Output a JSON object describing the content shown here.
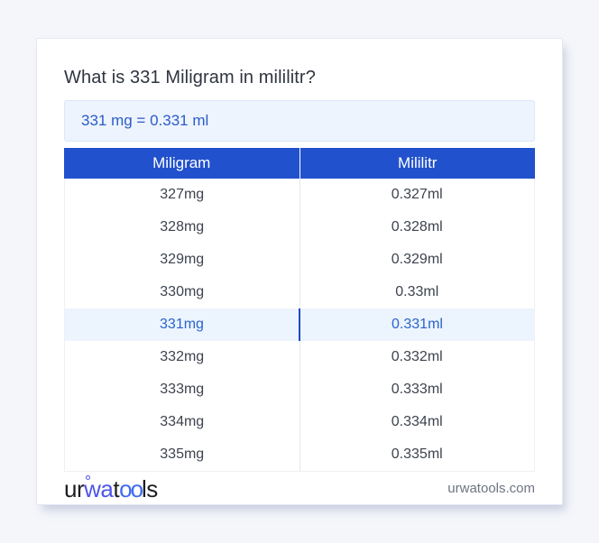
{
  "card": {
    "title": "What is 331 Miligram in mililitr?",
    "result": "331 mg = 0.331 ml"
  },
  "table": {
    "headers": [
      "Miligram",
      "Mililitr"
    ],
    "rows": [
      {
        "mg": "327mg",
        "ml": "0.327ml",
        "highlight": false
      },
      {
        "mg": "328mg",
        "ml": "0.328ml",
        "highlight": false
      },
      {
        "mg": "329mg",
        "ml": "0.329ml",
        "highlight": false
      },
      {
        "mg": "330mg",
        "ml": "0.33ml",
        "highlight": false
      },
      {
        "mg": "331mg",
        "ml": "0.331ml",
        "highlight": true
      },
      {
        "mg": "332mg",
        "ml": "0.332ml",
        "highlight": false
      },
      {
        "mg": "333mg",
        "ml": "0.333ml",
        "highlight": false
      },
      {
        "mg": "334mg",
        "ml": "0.334ml",
        "highlight": false
      },
      {
        "mg": "335mg",
        "ml": "0.335ml",
        "highlight": false
      }
    ]
  },
  "footer": {
    "logo": {
      "seg1": "ur",
      "seg2": "wa",
      "seg3": "t",
      "seg4": "oo",
      "seg5": "ls"
    },
    "domain": "urwatools.com"
  },
  "colors": {
    "page_background": "#f4f6fa",
    "header_blue": "#2151cc",
    "highlight_row_bg": "#ecf4fe",
    "highlight_text": "#2a64cb",
    "result_box_bg": "#edf4fe",
    "result_text": "#2b5cc5",
    "logo_indigo": "#4d55ec",
    "logo_blue": "#3f6bf0"
  }
}
